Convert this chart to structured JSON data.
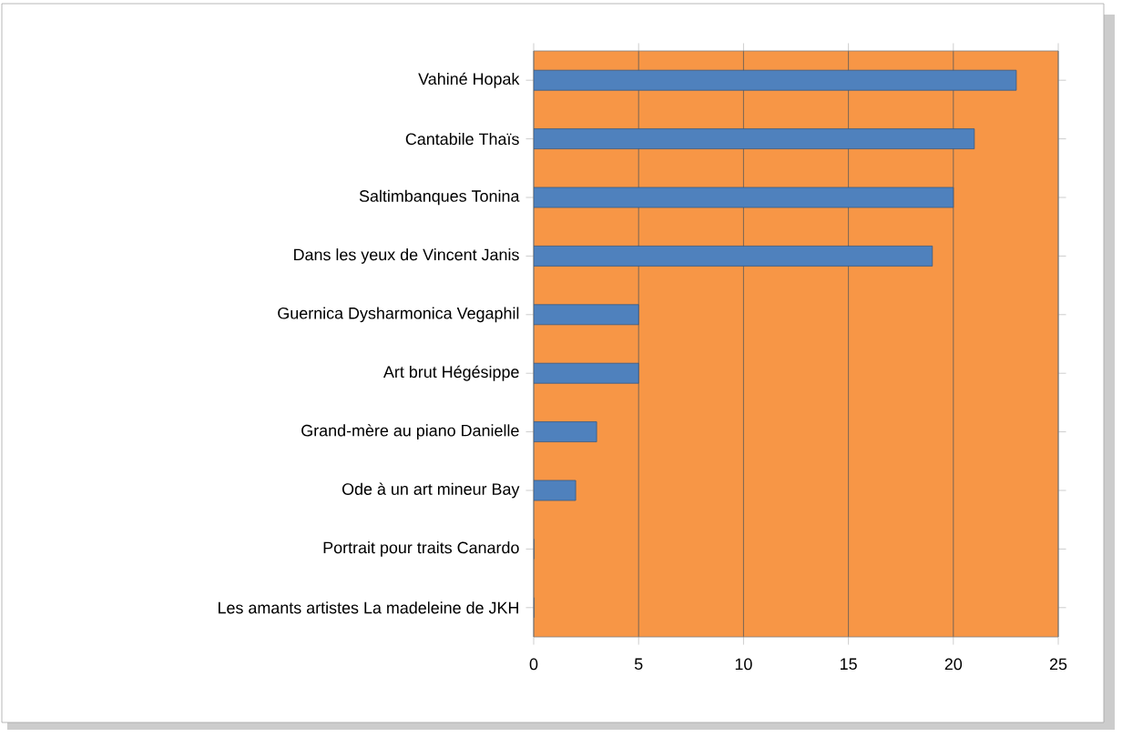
{
  "chart_data": {
    "type": "bar",
    "orientation": "horizontal",
    "categories": [
      "Vahiné Hopak",
      "Cantabile  Thaïs",
      "Saltimbanques Tonina",
      "Dans les yeux de Vincent Janis",
      "Guernica Dysharmonica Vegaphil",
      "Art brut Hégésippe",
      "Grand-mère au piano Danielle",
      "Ode à un art mineur Bay",
      "Portrait pour traits Canardo",
      "Les amants artistes La madeleine de JKH"
    ],
    "values": [
      23,
      21,
      20,
      19,
      5,
      5,
      3,
      2,
      0,
      0
    ],
    "color": "#4f81bd",
    "xlim": [
      0,
      25
    ],
    "xticks": [
      0,
      5,
      10,
      15,
      20,
      25
    ],
    "grid": "x"
  }
}
